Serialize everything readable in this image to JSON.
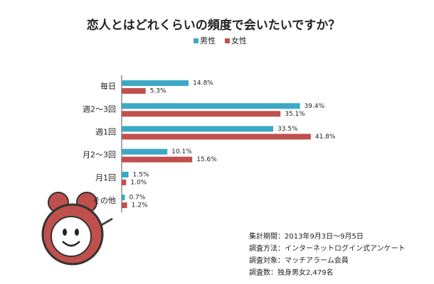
{
  "chart_data": {
    "type": "hbar",
    "title": "恋人とはどれくらいの頻度で会いたいですか？",
    "categories": [
      "毎日",
      "週2～3回",
      "週1回",
      "月2～3回",
      "月1回",
      "その他"
    ],
    "series": [
      {
        "name": "男性",
        "color": "#3ba8c6",
        "values": [
          14.8,
          39.4,
          33.5,
          10.1,
          1.5,
          0.7
        ],
        "value_labels": [
          "14.8%",
          "39.4%",
          "33.5%",
          "10.1%",
          "1.5%",
          "0.7%"
        ]
      },
      {
        "name": "女性",
        "color": "#c0504d",
        "values": [
          5.3,
          35.1,
          41.8,
          15.6,
          1.0,
          1.2
        ],
        "value_labels": [
          "5.3%",
          "35.1%",
          "41.8%",
          "15.6%",
          "1.0%",
          "1.2%"
        ]
      }
    ],
    "xlim": [
      0,
      50
    ],
    "legend": "top",
    "notes": [
      "集計期間：2013年9月3日～9月5日",
      "調査方法：インターネットログイン式アンケート",
      "調査対象：マッチアラーム会員",
      "調査数：独身男女2,479名"
    ]
  }
}
